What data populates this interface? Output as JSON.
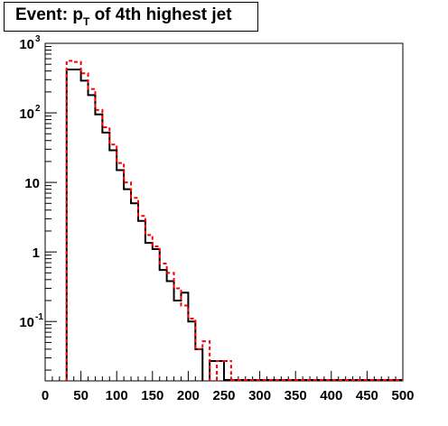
{
  "chart_data": {
    "type": "histogram",
    "title": {
      "prefix": "Event: p",
      "subscript": "T",
      "suffix": " of 4th highest jet"
    },
    "xlabel": "",
    "ylabel": "",
    "xlim": [
      0,
      500
    ],
    "ylim": [
      0.014,
      1000
    ],
    "y_scale": "log",
    "x_ticks": [
      0,
      50,
      100,
      150,
      200,
      250,
      300,
      350,
      400,
      450,
      500
    ],
    "y_ticks": [
      {
        "value": 0.1,
        "base": "10",
        "exp": "-1"
      },
      {
        "value": 1,
        "base": "1",
        "exp": ""
      },
      {
        "value": 10,
        "base": "10",
        "exp": ""
      },
      {
        "value": 100,
        "base": "10",
        "exp": "2"
      },
      {
        "value": 1000,
        "base": "10",
        "exp": "3"
      }
    ],
    "grid": false,
    "bin_width": 10,
    "series": [
      {
        "color": "#000000",
        "style": "solid",
        "bins": [
          {
            "x": 30,
            "y": 420
          },
          {
            "x": 40,
            "y": 420
          },
          {
            "x": 50,
            "y": 290
          },
          {
            "x": 60,
            "y": 180
          },
          {
            "x": 70,
            "y": 95
          },
          {
            "x": 80,
            "y": 52
          },
          {
            "x": 90,
            "y": 29
          },
          {
            "x": 100,
            "y": 15
          },
          {
            "x": 110,
            "y": 8
          },
          {
            "x": 120,
            "y": 5
          },
          {
            "x": 130,
            "y": 2.8
          },
          {
            "x": 140,
            "y": 1.35
          },
          {
            "x": 150,
            "y": 1.1
          },
          {
            "x": 160,
            "y": 0.55
          },
          {
            "x": 170,
            "y": 0.38
          },
          {
            "x": 180,
            "y": 0.2
          },
          {
            "x": 190,
            "y": 0.26
          },
          {
            "x": 200,
            "y": 0.1
          },
          {
            "x": 210,
            "y": 0.04
          },
          {
            "x": 230,
            "y": 0.027
          },
          {
            "x": 240,
            "y": 0.027
          }
        ]
      },
      {
        "color": "#ff0000",
        "style": "dashed",
        "bins": [
          {
            "x": 30,
            "y": 560
          },
          {
            "x": 40,
            "y": 540
          },
          {
            "x": 50,
            "y": 370
          },
          {
            "x": 60,
            "y": 220
          },
          {
            "x": 70,
            "y": 110
          },
          {
            "x": 80,
            "y": 62
          },
          {
            "x": 90,
            "y": 35
          },
          {
            "x": 100,
            "y": 19
          },
          {
            "x": 110,
            "y": 10
          },
          {
            "x": 120,
            "y": 6
          },
          {
            "x": 130,
            "y": 3.3
          },
          {
            "x": 140,
            "y": 1.75
          },
          {
            "x": 150,
            "y": 1.2
          },
          {
            "x": 160,
            "y": 0.68
          },
          {
            "x": 170,
            "y": 0.5
          },
          {
            "x": 180,
            "y": 0.3
          },
          {
            "x": 190,
            "y": 0.17
          },
          {
            "x": 200,
            "y": 0.11
          },
          {
            "x": 210,
            "y": 0.04
          },
          {
            "x": 220,
            "y": 0.052
          },
          {
            "x": 240,
            "y": 0.027
          },
          {
            "x": 250,
            "y": 0.027
          }
        ]
      }
    ]
  }
}
